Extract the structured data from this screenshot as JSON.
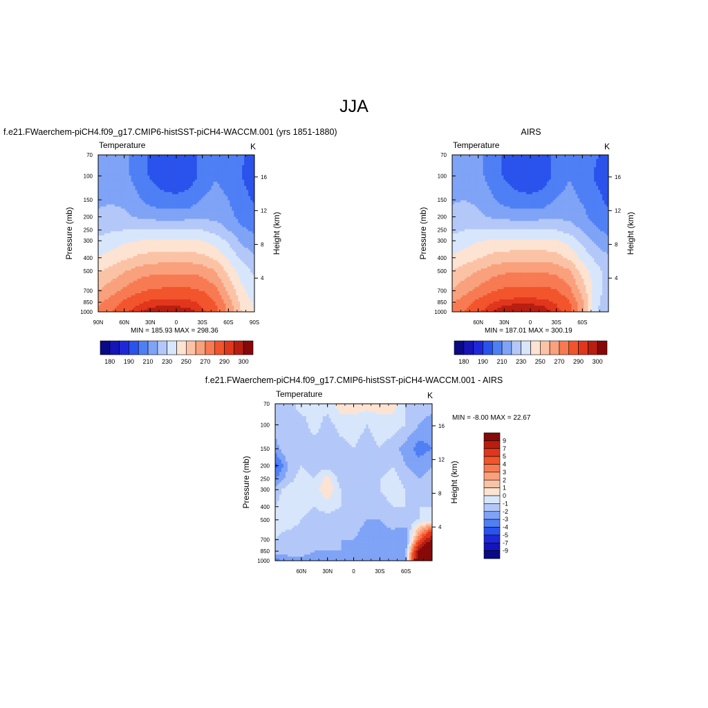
{
  "title": "JJA",
  "colors": {
    "abs_palette": [
      "#0a0a86",
      "#1414b8",
      "#1e28d8",
      "#2a52ec",
      "#4f7ff5",
      "#7fa3f6",
      "#b3c8f8",
      "#d8e6fb",
      "#fde3d2",
      "#fbc3a6",
      "#f9a07c",
      "#f77a52",
      "#f2542c",
      "#e0361c",
      "#b81e10",
      "#860808"
    ],
    "diff_palette": [
      "#0a0a86",
      "#1414b8",
      "#1e28d8",
      "#2a52ec",
      "#4f7ff5",
      "#7fa3f6",
      "#b3c8f8",
      "#d8e6fb",
      "#fde3d2",
      "#fbc3a6",
      "#f9a07c",
      "#f77a52",
      "#f2542c",
      "#e0361c",
      "#b81e10",
      "#860808"
    ]
  },
  "panels": [
    {
      "id": "model",
      "title": "f.e21.FWaerchem-piCH4.f09_g17.CMIP6-histSST-piCH4-WACCM.001 (yrs 1851-1880)",
      "subtitle_left": "Temperature",
      "subtitle_right": "K",
      "ylabel_left": "Pressure (mb)",
      "ylabel_right": "Height (km)",
      "stats": "MIN = 185.93  MAX = 298.36"
    },
    {
      "id": "obs",
      "title": "AIRS",
      "subtitle_left": "Temperature",
      "subtitle_right": "K",
      "ylabel_left": "Pressure (mb)",
      "ylabel_right": "Height (km)",
      "stats": "MIN = 187.01  MAX = 300.19"
    },
    {
      "id": "diff",
      "title": "f.e21.FWaerchem-piCH4.f09_g17.CMIP6-histSST-piCH4-WACCM.001 - AIRS",
      "subtitle_left": "Temperature",
      "subtitle_right": "K",
      "ylabel_left": "Pressure (mb)",
      "ylabel_right": "Height (km)",
      "stats": "MIN =  -8.00  MAX =  22.67"
    }
  ],
  "abs_colorbar_labels": [
    "180",
    "190",
    "210",
    "230",
    "250",
    "270",
    "290",
    "300"
  ],
  "diff_colorbar_labels": [
    "9",
    "7",
    "5",
    "4",
    "3",
    "2",
    "1",
    "0",
    "-1",
    "-2",
    "-3",
    "-4",
    "-5",
    "-7",
    "-9"
  ],
  "chart_data": [
    {
      "type": "heatmap",
      "panel": "model",
      "xlabel": "",
      "ylabel": "Pressure (mb)",
      "x_ticklabels": [
        "90N",
        "60N",
        "30N",
        "0",
        "30S",
        "60S",
        "90S"
      ],
      "y_ticklabels_pressure": [
        "70",
        "100",
        "150",
        "200",
        "250",
        "300",
        "400",
        "500",
        "700",
        "850",
        "1000"
      ],
      "y_ticklabels_height_km": [
        "16",
        "12",
        "8",
        "4"
      ],
      "units": "K",
      "min": 185.93,
      "max": 298.36,
      "levels": [
        180,
        185,
        190,
        200,
        210,
        220,
        230,
        240,
        250,
        260,
        270,
        280,
        290,
        295,
        300
      ],
      "lat": [
        90,
        75,
        60,
        45,
        30,
        15,
        0,
        -15,
        -30,
        -45,
        -60,
        -75,
        -90
      ],
      "pressure": [
        70,
        100,
        150,
        200,
        250,
        300,
        400,
        500,
        700,
        850,
        1000
      ],
      "values": [
        [
          215,
          214,
          212,
          205,
          199,
          196,
          195,
          196,
          203,
          208,
          207,
          201,
          197
        ],
        [
          215,
          215,
          213,
          206,
          199,
          195,
          194,
          195,
          203,
          209,
          206,
          200,
          196
        ],
        [
          218,
          219,
          218,
          212,
          206,
          203,
          202,
          204,
          211,
          214,
          210,
          203,
          199
        ],
        [
          222,
          223,
          222,
          219,
          217,
          216,
          216,
          217,
          218,
          217,
          214,
          206,
          203
        ],
        [
          227,
          229,
          230,
          230,
          231,
          231,
          231,
          231,
          230,
          226,
          220,
          212,
          208
        ],
        [
          232,
          235,
          238,
          240,
          241,
          241,
          241,
          241,
          240,
          236,
          228,
          218,
          213
        ],
        [
          240,
          244,
          248,
          252,
          254,
          255,
          255,
          255,
          253,
          248,
          238,
          228,
          222
        ],
        [
          249,
          254,
          259,
          264,
          267,
          268,
          268,
          268,
          266,
          260,
          247,
          235,
          228
        ],
        [
          260,
          266,
          272,
          278,
          281,
          282,
          282,
          282,
          280,
          273,
          258,
          243,
          235
        ],
        [
          268,
          274,
          282,
          288,
          292,
          293,
          293,
          292,
          288,
          280,
          265,
          247,
          238
        ],
        [
          273,
          280,
          288,
          294,
          298,
          298,
          298,
          297,
          292,
          284,
          268,
          250,
          240
        ]
      ]
    },
    {
      "type": "heatmap",
      "panel": "obs",
      "xlabel": "",
      "ylabel": "Pressure (mb)",
      "x_ticklabels": [
        "60N",
        "30N",
        "0",
        "30S",
        "60S"
      ],
      "y_ticklabels_pressure": [
        "70",
        "100",
        "150",
        "200",
        "250",
        "300",
        "400",
        "500",
        "700",
        "850",
        "1000"
      ],
      "y_ticklabels_height_km": [
        "16",
        "12",
        "8",
        "4"
      ],
      "units": "K",
      "min": 187.01,
      "max": 300.19,
      "levels": [
        180,
        185,
        190,
        200,
        210,
        220,
        230,
        240,
        250,
        260,
        270,
        280,
        290,
        295,
        300
      ],
      "lat": [
        90,
        75,
        60,
        45,
        30,
        15,
        0,
        -15,
        -30,
        -45,
        -60,
        -75,
        -90
      ],
      "pressure": [
        70,
        100,
        150,
        200,
        250,
        300,
        400,
        500,
        700,
        850,
        1000
      ],
      "values": [
        [
          216,
          215,
          212,
          205,
          199,
          196,
          195,
          196,
          203,
          208,
          206,
          201,
          196
        ],
        [
          216,
          216,
          213,
          206,
          199,
          195,
          194,
          195,
          203,
          209,
          205,
          199,
          195
        ],
        [
          219,
          220,
          218,
          212,
          206,
          203,
          202,
          204,
          211,
          214,
          209,
          203,
          198
        ],
        [
          223,
          224,
          222,
          219,
          217,
          216,
          216,
          217,
          218,
          217,
          213,
          206,
          202
        ],
        [
          228,
          230,
          231,
          231,
          231,
          231,
          231,
          231,
          230,
          226,
          219,
          212,
          207
        ],
        [
          233,
          236,
          239,
          241,
          242,
          242,
          242,
          242,
          241,
          236,
          227,
          218,
          212
        ],
        [
          241,
          245,
          249,
          253,
          255,
          256,
          256,
          256,
          254,
          248,
          237,
          228,
          221
        ],
        [
          250,
          255,
          260,
          265,
          268,
          269,
          269,
          269,
          267,
          261,
          246,
          234,
          226
        ],
        [
          261,
          267,
          273,
          279,
          282,
          283,
          283,
          283,
          281,
          273,
          256,
          236,
          224
        ],
        [
          269,
          275,
          283,
          289,
          293,
          294,
          294,
          293,
          289,
          281,
          262,
          235,
          222
        ],
        [
          274,
          281,
          289,
          295,
          299,
          300,
          300,
          298,
          293,
          285,
          264,
          232,
          220
        ]
      ]
    },
    {
      "type": "heatmap",
      "panel": "diff",
      "xlabel": "",
      "ylabel": "Pressure (mb)",
      "x_ticklabels": [
        "60N",
        "30N",
        "0",
        "30S",
        "60S"
      ],
      "y_ticklabels_pressure": [
        "70",
        "100",
        "150",
        "200",
        "250",
        "300",
        "400",
        "500",
        "700",
        "850",
        "1000"
      ],
      "y_ticklabels_height_km": [
        "16",
        "12",
        "8",
        "4"
      ],
      "units": "K",
      "min": -8.0,
      "max": 22.67,
      "levels": [
        -9,
        -7,
        -5,
        -4,
        -3,
        -2,
        -1,
        0,
        1,
        2,
        3,
        4,
        5,
        7,
        9
      ],
      "lat": [
        90,
        75,
        60,
        45,
        30,
        15,
        0,
        -15,
        -30,
        -45,
        -60,
        -75,
        -90
      ],
      "pressure": [
        70,
        100,
        150,
        200,
        250,
        300,
        400,
        500,
        700,
        850,
        1000
      ],
      "values": [
        [
          -1.0,
          -1.5,
          -0.5,
          -1.0,
          -0.5,
          0.5,
          0.5,
          0.5,
          0.5,
          0.5,
          -1.0,
          -1.5,
          -1.5
        ],
        [
          -1.5,
          -1.0,
          -1.5,
          -0.5,
          -1.5,
          -0.5,
          -0.5,
          -1.0,
          -0.5,
          -0.5,
          -1.0,
          -2.0,
          -2.5
        ],
        [
          -2.5,
          -1.0,
          -1.5,
          -1.5,
          -2.0,
          -1.5,
          -1.0,
          -1.5,
          -1.0,
          -1.5,
          -2.5,
          -3.5,
          -3.0
        ],
        [
          -4.5,
          -2.0,
          -1.0,
          -1.5,
          -1.5,
          -2.0,
          -1.5,
          -1.5,
          -1.5,
          -1.0,
          -2.0,
          -2.5,
          -2.0
        ],
        [
          -3.0,
          -1.5,
          -0.5,
          -1.0,
          0.5,
          -1.5,
          -2.0,
          -1.5,
          -1.0,
          -0.5,
          -1.5,
          -2.0,
          -1.5
        ],
        [
          -1.5,
          -0.5,
          -0.5,
          -0.5,
          0.8,
          -1.0,
          -2.0,
          -1.5,
          -1.0,
          -0.5,
          -1.0,
          -1.5,
          -1.0
        ],
        [
          -1.0,
          -0.5,
          -0.5,
          -1.0,
          -0.5,
          -1.0,
          -1.5,
          -1.5,
          -1.5,
          -1.0,
          -1.0,
          -1.0,
          -1.0
        ],
        [
          -0.5,
          -0.5,
          -1.0,
          -1.5,
          -1.5,
          -1.5,
          -1.5,
          -2.0,
          -2.0,
          -1.5,
          -1.5,
          -1.0,
          -0.5
        ],
        [
          -1.0,
          -1.5,
          -1.5,
          -1.5,
          -2.0,
          -2.0,
          -2.0,
          -2.5,
          -2.5,
          -2.5,
          -3.0,
          4.0,
          9.5
        ],
        [
          -1.5,
          -1.5,
          -1.5,
          -2.0,
          -2.0,
          -2.0,
          -2.5,
          -2.5,
          -2.0,
          -2.5,
          -2.0,
          9.5,
          15.0
        ],
        [
          -3.5,
          -2.5,
          -2.5,
          -2.5,
          -2.5,
          -2.0,
          -2.0,
          -2.0,
          -2.0,
          -2.0,
          -2.0,
          12.0,
          22.67
        ]
      ]
    }
  ]
}
